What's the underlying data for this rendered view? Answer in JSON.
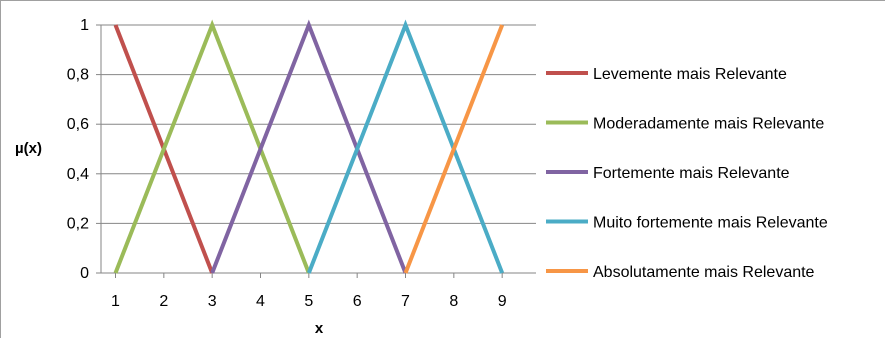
{
  "chart_data": {
    "type": "line",
    "title": "",
    "xlabel": "x",
    "ylabel": "µ(x)",
    "x_ticks": [
      "1",
      "2",
      "3",
      "4",
      "5",
      "6",
      "7",
      "8",
      "9"
    ],
    "y_ticks": [
      "0",
      "0,2",
      "0,4",
      "0,6",
      "0,8",
      "1"
    ],
    "xlim": [
      0.7,
      9.7
    ],
    "ylim": [
      0,
      1
    ],
    "grid": "horizontal",
    "legend_position": "right",
    "series": [
      {
        "name": "Levemente mais Relevante",
        "color": "#c0504d",
        "x": [
          1,
          3
        ],
        "y": [
          1,
          0
        ]
      },
      {
        "name": "Moderadamente mais Relevante",
        "color": "#9bbb59",
        "x": [
          1,
          3,
          5
        ],
        "y": [
          0,
          1,
          0
        ]
      },
      {
        "name": "Fortemente mais Relevante",
        "color": "#8064a2",
        "x": [
          3,
          5,
          7
        ],
        "y": [
          0,
          1,
          0
        ]
      },
      {
        "name": "Muito fortemente mais Relevante",
        "color": "#4bacc6",
        "x": [
          5,
          7,
          9
        ],
        "y": [
          0,
          1,
          0
        ]
      },
      {
        "name": "Absolutamente mais Relevante",
        "color": "#f79646",
        "x": [
          7,
          9
        ],
        "y": [
          0,
          1
        ]
      }
    ]
  }
}
